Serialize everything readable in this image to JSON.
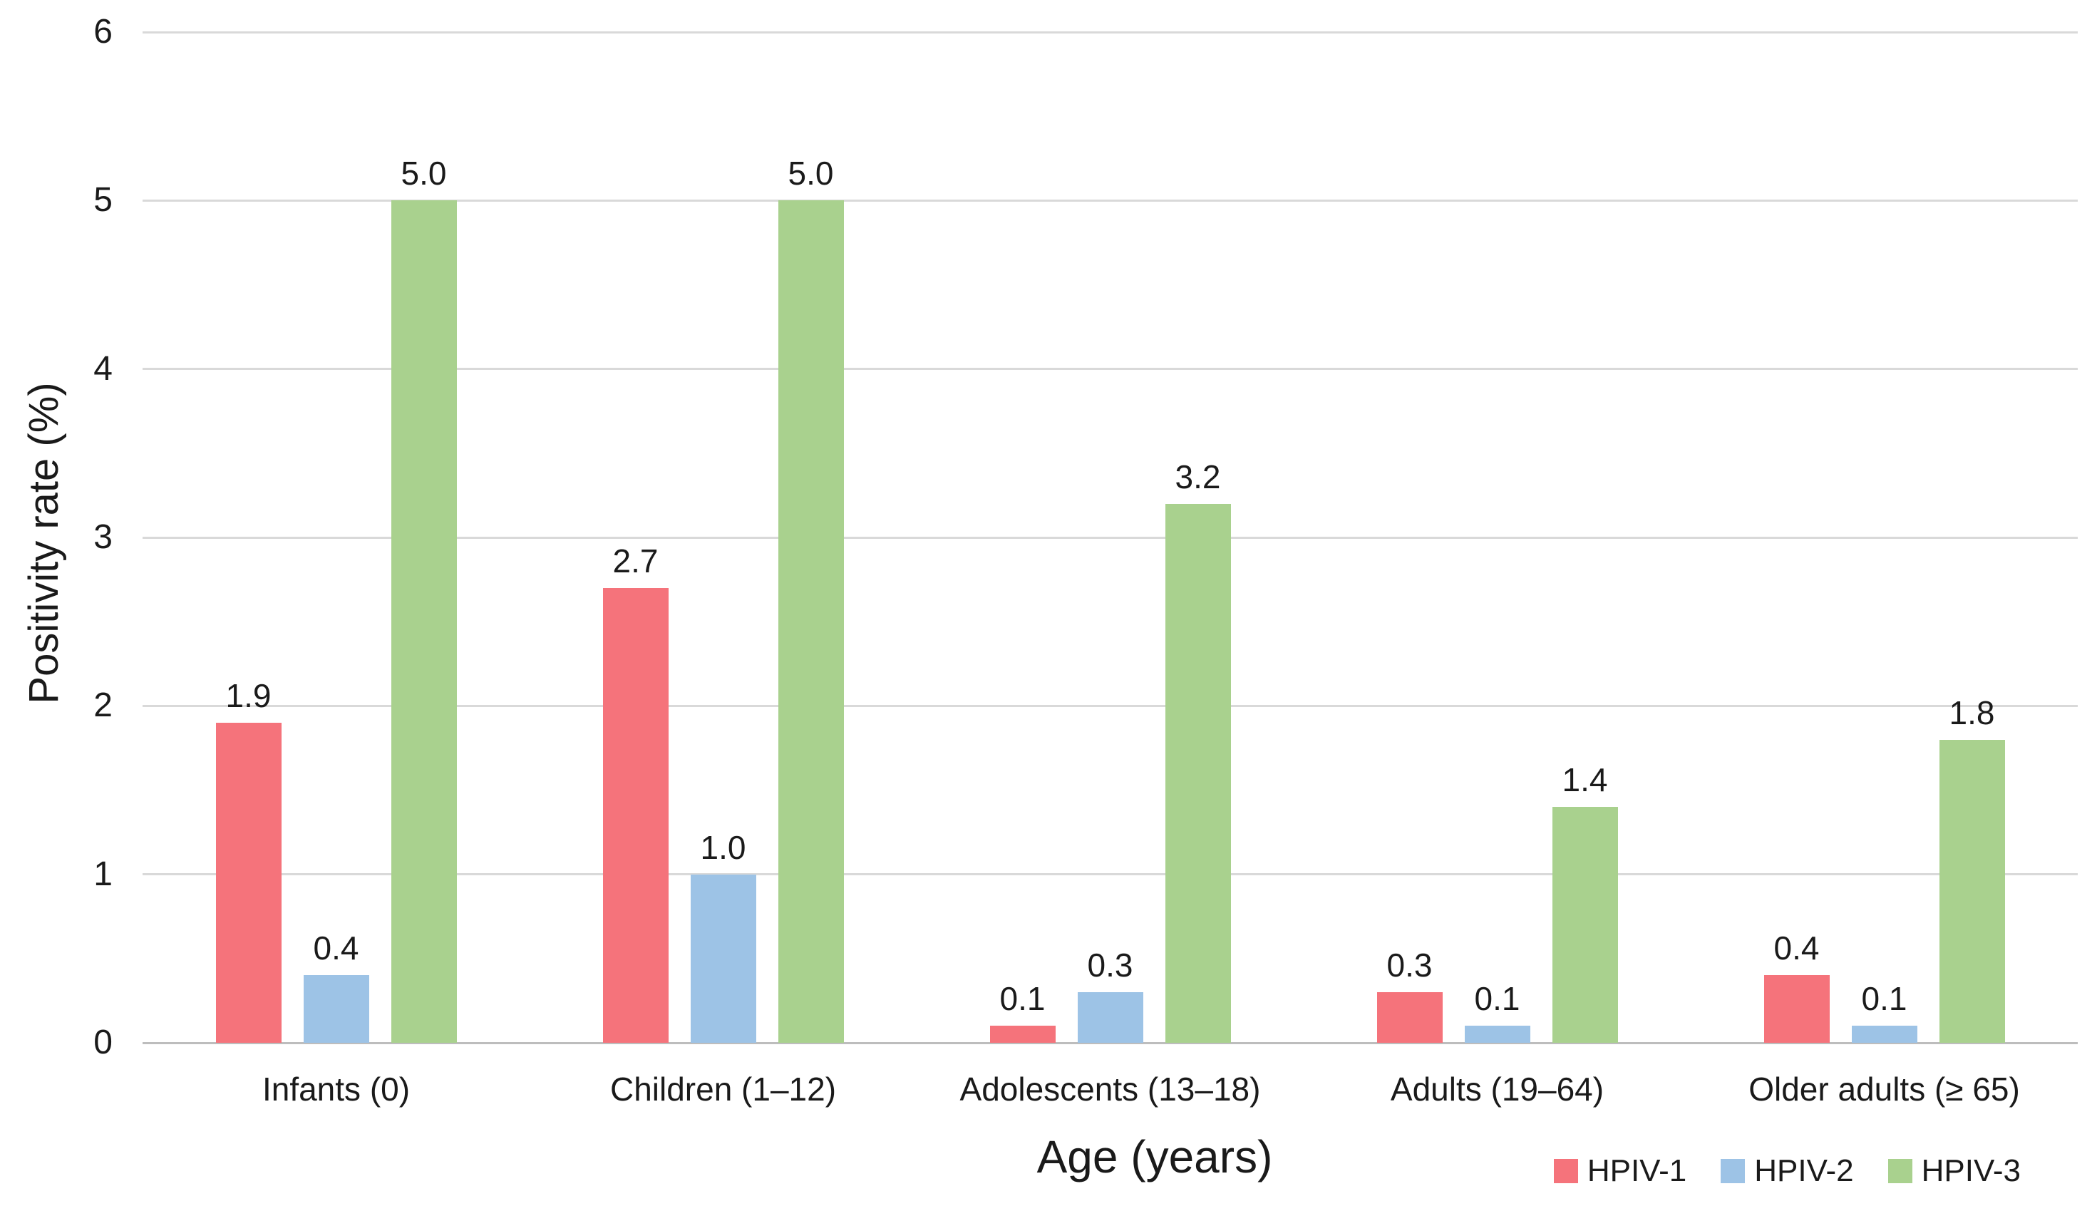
{
  "chart_data": {
    "type": "bar",
    "title": "",
    "xlabel": "Age (years)",
    "ylabel": "Positivity rate (%)",
    "categories": [
      "Infants (0)",
      "Children (1–12)",
      "Adolescents (13–18)",
      "Adults (19–64)",
      "Older adults (≥ 65)"
    ],
    "series": [
      {
        "name": "HPIV-1",
        "color": "#f5737b",
        "values": [
          1.9,
          2.7,
          0.1,
          0.3,
          0.4
        ]
      },
      {
        "name": "HPIV-2",
        "color": "#9dc3e6",
        "values": [
          0.4,
          1.0,
          0.3,
          0.1,
          0.1
        ]
      },
      {
        "name": "HPIV-3",
        "color": "#a9d18e",
        "values": [
          5.0,
          5.0,
          3.2,
          1.4,
          1.8
        ]
      }
    ],
    "ylim": [
      0,
      6
    ],
    "yticks": [
      0,
      1,
      2,
      3,
      4,
      5,
      6
    ],
    "grid": true,
    "value_labels": "one-decimal",
    "legend_position": "bottom-right"
  },
  "style": {
    "gridline_color": "#d9d9d9",
    "baseline_color": "#bdbdbd",
    "text_color": "#1a1a1a",
    "background": "#ffffff"
  }
}
